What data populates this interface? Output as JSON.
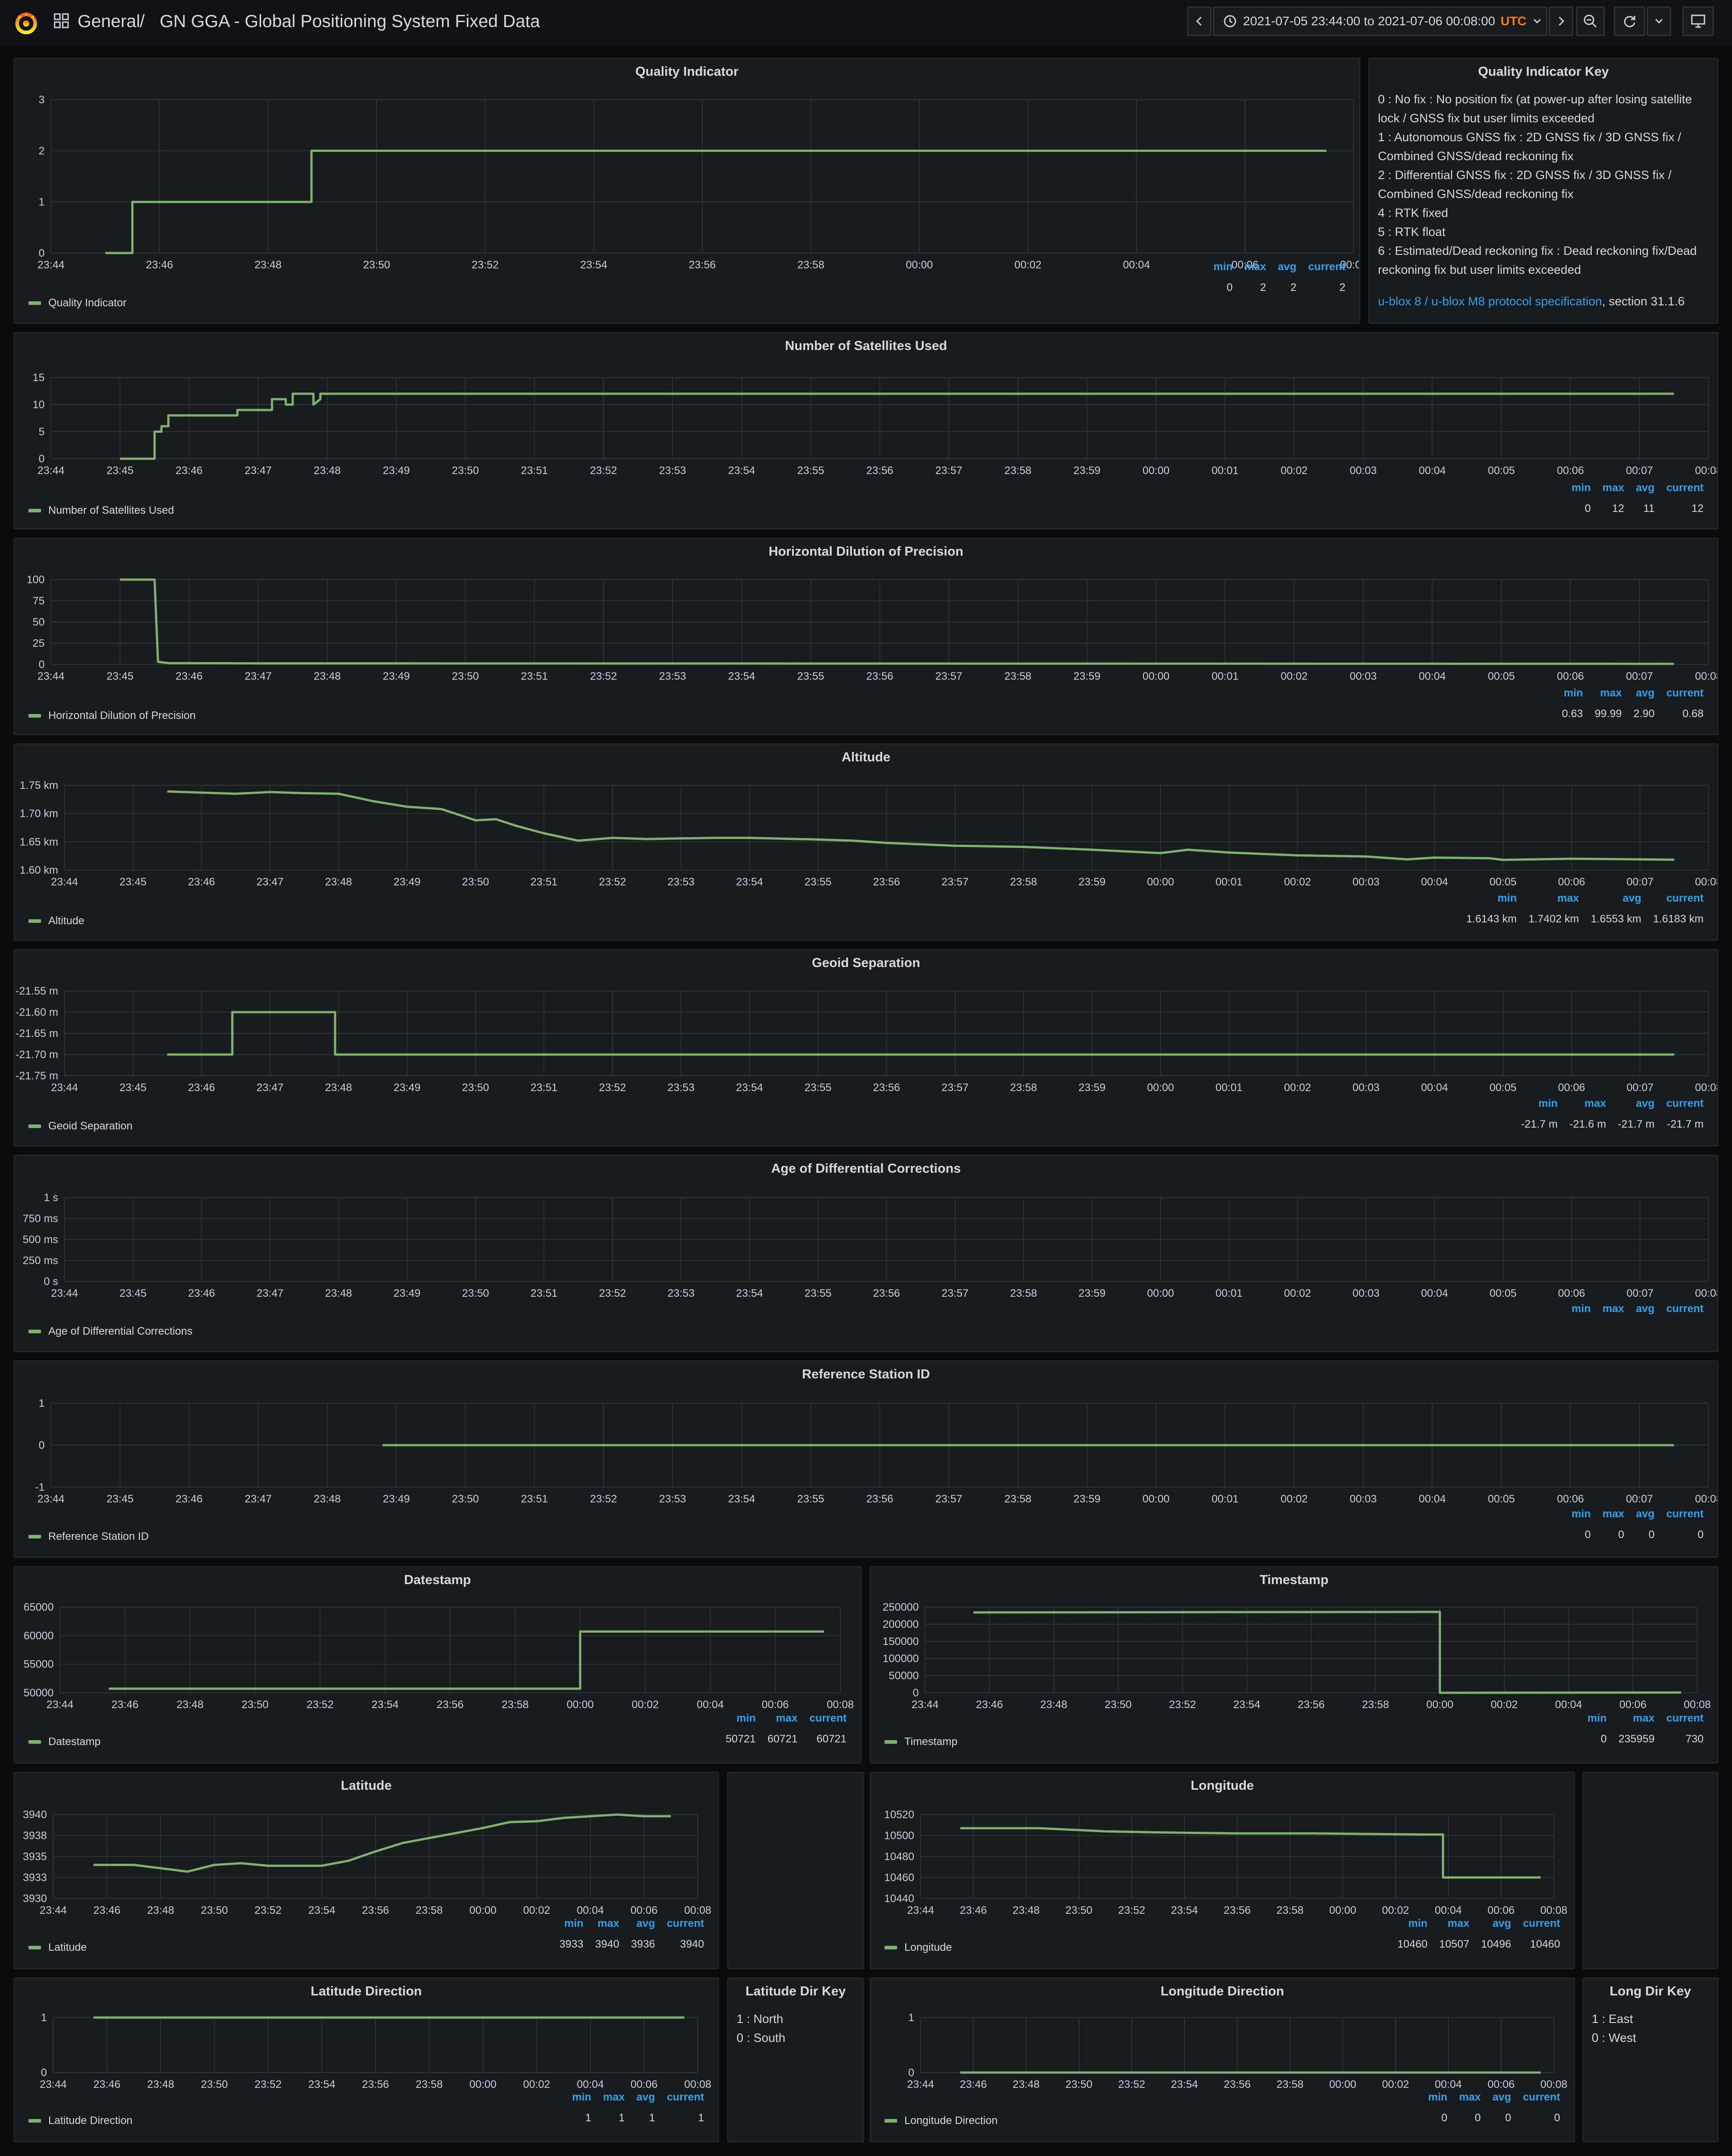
{
  "header": {
    "home": "General",
    "separator": "/",
    "title": "GN GGA - Global Positioning System Fixed Data",
    "time_range": "2021-07-05 23:44:00 to 2021-07-06 00:08:00",
    "timezone": "UTC"
  },
  "text_panels": [
    {
      "id": "qkey",
      "title": "Quality Indicator Key",
      "lines": [
        "0 : No fix : No position fix (at power-up after losing satellite lock / GNSS fix but user limits exceeded",
        "1 : Autonomous GNSS fix : 2D GNSS fix / 3D GNSS fix / Combined GNSS/dead reckoning fix",
        "2 : Differential GNSS fix : 2D GNSS fix / 3D GNSS fix / Combined GNSS/dead reckoning fix",
        "4 : RTK fixed",
        "5 : RTK float",
        "6 : Estimated/Dead reckoning fix : Dead reckoning fix/Dead reckoning fix but user limits exceeded"
      ],
      "link": "u-blox 8 / u-blox M8 protocol specification",
      "link_suffix": ", section 31.1.6"
    },
    {
      "id": "latkey",
      "title": "Latitude Dir Key",
      "lines": [
        "1 : North",
        "0 : South"
      ]
    },
    {
      "id": "lonkey",
      "title": "Long Dir Key",
      "lines": [
        "1 : East",
        "0 : West"
      ]
    }
  ],
  "stat_headers": {
    "min": "min",
    "max": "max",
    "avg": "avg",
    "current": "current"
  },
  "chart_data": [
    {
      "id": "quality",
      "type": "line",
      "title": "Quality Indicator",
      "legend": "Quality Indicator",
      "yticks": [
        "3",
        "2",
        "1",
        "0"
      ],
      "ylim": [
        0,
        3
      ],
      "xticks": [
        "23:44",
        "23:46",
        "23:48",
        "23:50",
        "23:52",
        "23:54",
        "23:56",
        "23:58",
        "00:00",
        "00:02",
        "00:04",
        "00:06",
        "00:08"
      ],
      "stats": {
        "min": "0",
        "max": "2",
        "avg": "2",
        "current": "2"
      },
      "points": [
        [
          1,
          0
        ],
        [
          1.5,
          0
        ],
        [
          1.5,
          1
        ],
        [
          4.8,
          1
        ],
        [
          4.8,
          2
        ],
        [
          23.5,
          2
        ]
      ]
    },
    {
      "id": "sats",
      "type": "line",
      "title": "Number of Satellites Used",
      "legend": "Number of Satellites Used",
      "yticks": [
        "15",
        "10",
        "5",
        "0"
      ],
      "ylim": [
        0,
        15
      ],
      "xticks": [
        "23:44",
        "23:45",
        "23:46",
        "23:47",
        "23:48",
        "23:49",
        "23:50",
        "23:51",
        "23:52",
        "23:53",
        "23:54",
        "23:55",
        "23:56",
        "23:57",
        "23:58",
        "23:59",
        "00:00",
        "00:01",
        "00:02",
        "00:03",
        "00:04",
        "00:05",
        "00:06",
        "00:07",
        "00:08"
      ],
      "stats": {
        "min": "0",
        "max": "12",
        "avg": "11",
        "current": "12"
      },
      "points": [
        [
          1,
          0
        ],
        [
          1.5,
          0
        ],
        [
          1.5,
          5
        ],
        [
          1.6,
          5
        ],
        [
          1.6,
          6
        ],
        [
          1.7,
          6
        ],
        [
          1.7,
          8
        ],
        [
          2.7,
          8
        ],
        [
          2.7,
          9
        ],
        [
          3.2,
          9
        ],
        [
          3.2,
          11
        ],
        [
          3.4,
          11
        ],
        [
          3.4,
          10
        ],
        [
          3.5,
          10
        ],
        [
          3.5,
          12
        ],
        [
          3.8,
          12
        ],
        [
          3.8,
          10
        ],
        [
          3.9,
          11
        ],
        [
          3.9,
          12
        ],
        [
          23.5,
          12
        ]
      ]
    },
    {
      "id": "hdop",
      "type": "line",
      "title": "Horizontal Dilution of Precision",
      "legend": "Horizontal Dilution of Precision",
      "yticks": [
        "100",
        "75",
        "50",
        "25",
        "0"
      ],
      "ylim": [
        0,
        100
      ],
      "xticks": [
        "23:44",
        "23:45",
        "23:46",
        "23:47",
        "23:48",
        "23:49",
        "23:50",
        "23:51",
        "23:52",
        "23:53",
        "23:54",
        "23:55",
        "23:56",
        "23:57",
        "23:58",
        "23:59",
        "00:00",
        "00:01",
        "00:02",
        "00:03",
        "00:04",
        "00:05",
        "00:06",
        "00:07",
        "00:08"
      ],
      "stats": {
        "min": "0.63",
        "max": "99.99",
        "avg": "2.90",
        "current": "0.68"
      },
      "points": [
        [
          1,
          99.99
        ],
        [
          1.5,
          99.99
        ],
        [
          1.55,
          3
        ],
        [
          1.7,
          1.5
        ],
        [
          3,
          1.2
        ],
        [
          23.5,
          0.68
        ]
      ]
    },
    {
      "id": "alt",
      "type": "line",
      "title": "Altitude",
      "legend": "Altitude",
      "yticks": [
        "1.75 km",
        "1.70 km",
        "1.65 km",
        "1.60 km"
      ],
      "ylim": [
        1.6,
        1.75
      ],
      "xticks": [
        "23:44",
        "23:45",
        "23:46",
        "23:47",
        "23:48",
        "23:49",
        "23:50",
        "23:51",
        "23:52",
        "23:53",
        "23:54",
        "23:55",
        "23:56",
        "23:57",
        "23:58",
        "23:59",
        "00:00",
        "00:01",
        "00:02",
        "00:03",
        "00:04",
        "00:05",
        "00:06",
        "00:07",
        "00:08"
      ],
      "stats": {
        "min": "1.6143 km",
        "max": "1.7402 km",
        "avg": "1.6553 km",
        "current": "1.6183 km"
      },
      "points": [
        [
          1.5,
          1.739
        ],
        [
          2,
          1.737
        ],
        [
          2.5,
          1.735
        ],
        [
          3,
          1.738
        ],
        [
          3.5,
          1.736
        ],
        [
          4,
          1.735
        ],
        [
          4.5,
          1.722
        ],
        [
          5,
          1.712
        ],
        [
          5.5,
          1.708
        ],
        [
          6,
          1.688
        ],
        [
          6.3,
          1.69
        ],
        [
          6.6,
          1.678
        ],
        [
          7,
          1.665
        ],
        [
          7.5,
          1.652
        ],
        [
          8,
          1.657
        ],
        [
          8.5,
          1.655
        ],
        [
          9,
          1.656
        ],
        [
          9.5,
          1.657
        ],
        [
          10,
          1.657
        ],
        [
          11,
          1.654
        ],
        [
          11.5,
          1.652
        ],
        [
          12,
          1.648
        ],
        [
          13,
          1.643
        ],
        [
          14,
          1.641
        ],
        [
          15,
          1.636
        ],
        [
          16,
          1.63
        ],
        [
          16.4,
          1.636
        ],
        [
          17,
          1.631
        ],
        [
          18,
          1.626
        ],
        [
          19,
          1.624
        ],
        [
          19.6,
          1.619
        ],
        [
          20,
          1.622
        ],
        [
          20.8,
          1.621
        ],
        [
          21,
          1.618
        ],
        [
          22,
          1.62
        ],
        [
          23,
          1.619
        ],
        [
          23.5,
          1.6183
        ]
      ]
    },
    {
      "id": "geoid",
      "type": "line",
      "title": "Geoid Separation",
      "legend": "Geoid Separation",
      "yticks": [
        "-21.55 m",
        "-21.60 m",
        "-21.65 m",
        "-21.70 m",
        "-21.75 m"
      ],
      "ylim": [
        -21.75,
        -21.55
      ],
      "xticks": [
        "23:44",
        "23:45",
        "23:46",
        "23:47",
        "23:48",
        "23:49",
        "23:50",
        "23:51",
        "23:52",
        "23:53",
        "23:54",
        "23:55",
        "23:56",
        "23:57",
        "23:58",
        "23:59",
        "00:00",
        "00:01",
        "00:02",
        "00:03",
        "00:04",
        "00:05",
        "00:06",
        "00:07",
        "00:08"
      ],
      "stats": {
        "min": "-21.7 m",
        "max": "-21.6 m",
        "avg": "-21.7 m",
        "current": "-21.7 m"
      },
      "points": [
        [
          1.5,
          -21.7
        ],
        [
          2.45,
          -21.7
        ],
        [
          2.45,
          -21.6
        ],
        [
          3.95,
          -21.6
        ],
        [
          3.95,
          -21.7
        ],
        [
          23.5,
          -21.7
        ]
      ]
    },
    {
      "id": "diffage",
      "type": "line",
      "title": "Age of Differential Corrections",
      "legend": "Age of Differential Corrections",
      "yticks": [
        "1 s",
        "750 ms",
        "500 ms",
        "250 ms",
        "0 s"
      ],
      "ylim": [
        0,
        1
      ],
      "xticks": [
        "23:44",
        "23:45",
        "23:46",
        "23:47",
        "23:48",
        "23:49",
        "23:50",
        "23:51",
        "23:52",
        "23:53",
        "23:54",
        "23:55",
        "23:56",
        "23:57",
        "23:58",
        "23:59",
        "00:00",
        "00:01",
        "00:02",
        "00:03",
        "00:04",
        "00:05",
        "00:06",
        "00:07",
        "00:08"
      ],
      "stats": {
        "min": "",
        "max": "",
        "avg": "",
        "current": ""
      },
      "points": []
    },
    {
      "id": "refid",
      "type": "line",
      "title": "Reference Station ID",
      "legend": "Reference Station ID",
      "yticks": [
        "1",
        "0",
        "-1"
      ],
      "ylim": [
        -1,
        1
      ],
      "xticks": [
        "23:44",
        "23:45",
        "23:46",
        "23:47",
        "23:48",
        "23:49",
        "23:50",
        "23:51",
        "23:52",
        "23:53",
        "23:54",
        "23:55",
        "23:56",
        "23:57",
        "23:58",
        "23:59",
        "00:00",
        "00:01",
        "00:02",
        "00:03",
        "00:04",
        "00:05",
        "00:06",
        "00:07",
        "00:08"
      ],
      "stats": {
        "min": "0",
        "max": "0",
        "avg": "0",
        "current": "0"
      },
      "points": [
        [
          4.8,
          0
        ],
        [
          23.5,
          0
        ]
      ]
    },
    {
      "id": "date",
      "type": "line",
      "title": "Datestamp",
      "legend": "Datestamp",
      "yticks": [
        "65000",
        "60000",
        "55000",
        "50000"
      ],
      "ylim": [
        50000,
        65000
      ],
      "xticks": [
        "23:44",
        "23:46",
        "23:48",
        "23:50",
        "23:52",
        "23:54",
        "23:56",
        "23:58",
        "00:00",
        "00:02",
        "00:04",
        "00:06",
        "00:08"
      ],
      "stats": {
        "min": "50721",
        "max": "60721",
        "avg": "",
        "current": "60721"
      },
      "points": [
        [
          1.5,
          50721
        ],
        [
          16,
          50721
        ],
        [
          16,
          60721
        ],
        [
          23.5,
          60721
        ]
      ]
    },
    {
      "id": "time",
      "type": "line",
      "title": "Timestamp",
      "legend": "Timestamp",
      "yticks": [
        "250000",
        "200000",
        "150000",
        "100000",
        "50000",
        "0"
      ],
      "ylim": [
        0,
        250000
      ],
      "xticks": [
        "23:44",
        "23:46",
        "23:48",
        "23:50",
        "23:52",
        "23:54",
        "23:56",
        "23:58",
        "00:00",
        "00:02",
        "00:04",
        "00:06",
        "00:08"
      ],
      "stats": {
        "min": "0",
        "max": "235959",
        "avg": "",
        "current": "730"
      },
      "points": [
        [
          1.5,
          234400
        ],
        [
          16,
          235959
        ],
        [
          16,
          0
        ],
        [
          23.5,
          730
        ]
      ]
    },
    {
      "id": "lat",
      "type": "line",
      "title": "Latitude",
      "legend": "Latitude",
      "yticks": [
        "3940",
        "3938",
        "3935",
        "3933",
        "3930"
      ],
      "ylim": [
        3930,
        3940
      ],
      "xticks": [
        "23:44",
        "23:46",
        "23:48",
        "23:50",
        "23:52",
        "23:54",
        "23:56",
        "23:58",
        "00:00",
        "00:02",
        "00:04",
        "00:06",
        "00:08"
      ],
      "stats": {
        "min": "3933",
        "max": "3940",
        "avg": "3936",
        "current": "3940"
      },
      "points": [
        [
          1.5,
          3934
        ],
        [
          3,
          3934
        ],
        [
          4,
          3933.6
        ],
        [
          5,
          3933.2
        ],
        [
          6,
          3934
        ],
        [
          7,
          3934.2
        ],
        [
          8,
          3933.9
        ],
        [
          10,
          3933.9
        ],
        [
          11,
          3934.5
        ],
        [
          12,
          3935.6
        ],
        [
          13,
          3936.6
        ],
        [
          14,
          3937.2
        ],
        [
          15,
          3937.8
        ],
        [
          16,
          3938.4
        ],
        [
          17,
          3939.1
        ],
        [
          18,
          3939.2
        ],
        [
          19,
          3939.6
        ],
        [
          20,
          3939.8
        ],
        [
          21,
          3940
        ],
        [
          22,
          3939.8
        ],
        [
          23,
          3939.8
        ]
      ]
    },
    {
      "id": "lon",
      "type": "line",
      "title": "Longitude",
      "legend": "Longitude",
      "yticks": [
        "10520",
        "10500",
        "10480",
        "10460",
        "10440"
      ],
      "ylim": [
        10440,
        10520
      ],
      "xticks": [
        "23:44",
        "23:46",
        "23:48",
        "23:50",
        "23:52",
        "23:54",
        "23:56",
        "23:58",
        "00:00",
        "00:02",
        "00:04",
        "00:06",
        "00:08"
      ],
      "stats": {
        "min": "10460",
        "max": "10507",
        "avg": "10496",
        "current": "10460"
      },
      "points": [
        [
          1.5,
          10507
        ],
        [
          4.5,
          10507
        ],
        [
          7,
          10504
        ],
        [
          9,
          10503
        ],
        [
          12,
          10502
        ],
        [
          15,
          10502
        ],
        [
          19,
          10501
        ],
        [
          19.8,
          10501
        ],
        [
          19.8,
          10460
        ],
        [
          23.5,
          10460
        ]
      ]
    },
    {
      "id": "latdir",
      "type": "line",
      "title": "Latitude Direction",
      "legend": "Latitude Direction",
      "yticks": [
        "1",
        "0"
      ],
      "ylim": [
        0,
        1
      ],
      "xticks": [
        "23:44",
        "23:46",
        "23:48",
        "23:50",
        "23:52",
        "23:54",
        "23:56",
        "23:58",
        "00:00",
        "00:02",
        "00:04",
        "00:06",
        "00:08"
      ],
      "stats": {
        "min": "1",
        "max": "1",
        "avg": "1",
        "current": "1"
      },
      "points": [
        [
          1.5,
          1
        ],
        [
          23.5,
          1
        ]
      ]
    },
    {
      "id": "londir",
      "type": "line",
      "title": "Longitude Direction",
      "legend": "Longitude Direction",
      "yticks": [
        "1",
        "0"
      ],
      "ylim": [
        0,
        1
      ],
      "xticks": [
        "23:44",
        "23:46",
        "23:48",
        "23:50",
        "23:52",
        "23:54",
        "23:56",
        "23:58",
        "00:00",
        "00:02",
        "00:04",
        "00:06",
        "00:08"
      ],
      "stats": {
        "min": "0",
        "max": "0",
        "avg": "0",
        "current": "0"
      },
      "points": [
        [
          1.5,
          0
        ],
        [
          23.5,
          0
        ]
      ]
    }
  ]
}
